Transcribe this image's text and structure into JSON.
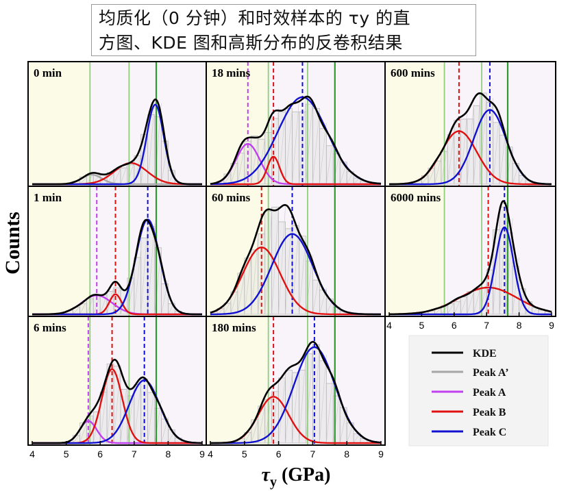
{
  "title": {
    "line1": "均质化（0 分钟）和时效样本的 τy 的直",
    "line2": "方图、KDE 图和高斯分布的反卷积结果"
  },
  "axes": {
    "xlabel_symbol": "τ",
    "xlabel_sub": "y",
    "xlabel_unit": " (GPa)",
    "ylabel": "Counts",
    "xticks": [
      "4",
      "5",
      "6",
      "7",
      "8",
      "9"
    ]
  },
  "legend": [
    {
      "label": "KDE",
      "color": "#000000"
    },
    {
      "label": "Peak A’",
      "color": "#a6a6a6"
    },
    {
      "label": "Peak A",
      "color": "#c040f0"
    },
    {
      "label": "Peak B",
      "color": "#e01010"
    },
    {
      "label": "Peak C",
      "color": "#1010d0"
    }
  ],
  "colors": {
    "kde": "#000000",
    "peakA2": "#a6a6a6",
    "peakA": "#c040f0",
    "peakB": "#e01010",
    "peakC": "#1010d0",
    "green_light": "#8fcf7a",
    "green_dark": "#2e9a2e",
    "bg_left": "#fbfbe8",
    "bg_right": "#f8f4fa"
  },
  "chart_data": {
    "type": "area",
    "xlim": [
      4,
      9
    ],
    "ylim": [
      0,
      1
    ],
    "reference_lines": {
      "light_green": [
        5.7,
        6.85
      ],
      "dark_green": 7.65
    },
    "panels": [
      {
        "label": "0 min",
        "peaks": [
          {
            "name": "Peak A’",
            "mu": 5.75,
            "sigma": 0.3,
            "amp": 0.09
          },
          {
            "name": "Peak B",
            "mu": 6.9,
            "sigma": 0.48,
            "amp": 0.2
          },
          {
            "name": "Peak C",
            "mu": 7.62,
            "sigma": 0.25,
            "amp": 0.75
          }
        ],
        "markers": []
      },
      {
        "label": "18 mins",
        "peaks": [
          {
            "name": "Peak A",
            "mu": 5.1,
            "sigma": 0.35,
            "amp": 0.38
          },
          {
            "name": "Peak B",
            "mu": 5.85,
            "sigma": 0.18,
            "amp": 0.26
          },
          {
            "name": "Peak C",
            "mu": 6.7,
            "sigma": 0.72,
            "amp": 0.82
          }
        ],
        "markers": [
          {
            "x": 5.1,
            "color": "peakA"
          },
          {
            "x": 5.85,
            "color": "peakB"
          },
          {
            "x": 6.7,
            "color": "peakC"
          }
        ]
      },
      {
        "label": "600 mins",
        "peaks": [
          {
            "name": "Peak B",
            "mu": 6.15,
            "sigma": 0.55,
            "amp": 0.5
          },
          {
            "name": "Peak C",
            "mu": 7.1,
            "sigma": 0.5,
            "amp": 0.7
          }
        ],
        "markers": [
          {
            "x": 6.15,
            "color": "peakB"
          },
          {
            "x": 7.1,
            "color": "peakC"
          }
        ]
      },
      {
        "label": "1 min",
        "peaks": [
          {
            "name": "Peak A",
            "mu": 5.9,
            "sigma": 0.45,
            "amp": 0.17
          },
          {
            "name": "Peak B",
            "mu": 6.45,
            "sigma": 0.18,
            "amp": 0.18
          },
          {
            "name": "Peak C",
            "mu": 7.4,
            "sigma": 0.35,
            "amp": 0.85
          }
        ],
        "markers": [
          {
            "x": 5.9,
            "color": "peakA"
          },
          {
            "x": 6.45,
            "color": "peakB"
          },
          {
            "x": 7.4,
            "color": "peakC"
          }
        ]
      },
      {
        "label": "60 mins",
        "peaks": [
          {
            "name": "Peak B",
            "mu": 5.5,
            "sigma": 0.55,
            "amp": 0.6
          },
          {
            "name": "Peak C",
            "mu": 6.4,
            "sigma": 0.6,
            "amp": 0.72
          }
        ],
        "markers": [
          {
            "x": 5.5,
            "color": "peakB"
          },
          {
            "x": 6.4,
            "color": "peakC"
          }
        ]
      },
      {
        "label": "6000 mins",
        "peaks": [
          {
            "name": "Peak B",
            "mu": 7.05,
            "sigma": 0.9,
            "amp": 0.24
          },
          {
            "name": "Peak C",
            "mu": 7.55,
            "sigma": 0.28,
            "amp": 0.78
          }
        ],
        "markers": [
          {
            "x": 7.05,
            "color": "peakB"
          },
          {
            "x": 7.55,
            "color": "peakC"
          }
        ]
      },
      {
        "label": "6 mins",
        "peaks": [
          {
            "name": "Peak A",
            "mu": 5.65,
            "sigma": 0.25,
            "amp": 0.2
          },
          {
            "name": "Peak B",
            "mu": 6.35,
            "sigma": 0.3,
            "amp": 0.67
          },
          {
            "name": "Peak C",
            "mu": 7.3,
            "sigma": 0.45,
            "amp": 0.57
          }
        ],
        "markers": [
          {
            "x": 5.65,
            "color": "peakA"
          },
          {
            "x": 6.35,
            "color": "peakB"
          },
          {
            "x": 7.3,
            "color": "peakC"
          }
        ]
      },
      {
        "label": "180 mins",
        "peaks": [
          {
            "name": "Peak B",
            "mu": 5.85,
            "sigma": 0.45,
            "amp": 0.42
          },
          {
            "name": "Peak C",
            "mu": 7.05,
            "sigma": 0.6,
            "amp": 0.87
          }
        ],
        "markers": [
          {
            "x": 5.85,
            "color": "peakB"
          },
          {
            "x": 7.05,
            "color": "peakC"
          }
        ]
      }
    ]
  }
}
